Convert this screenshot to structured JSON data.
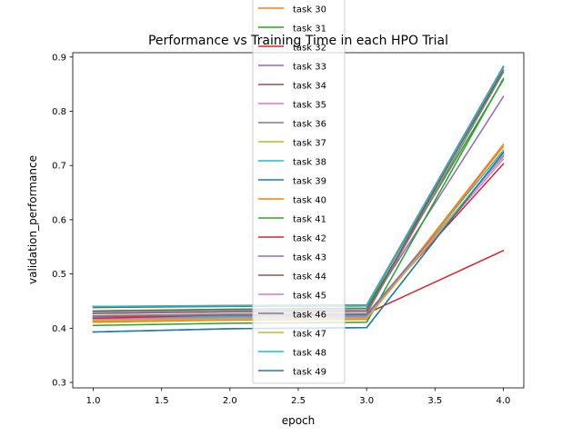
{
  "chart_data": {
    "type": "line",
    "title": "Performance vs Training Time in each HPO Trial",
    "xlabel": "epoch",
    "ylabel": "validation_performance",
    "x": [
      1.0,
      2.0,
      3.0,
      4.0
    ],
    "xlim": [
      0.85,
      4.15
    ],
    "ylim": [
      0.29,
      0.908
    ],
    "xticks": [
      1.0,
      1.5,
      2.0,
      2.5,
      3.0,
      3.5,
      4.0
    ],
    "xtick_labels": [
      "1.0",
      "1.5",
      "2.0",
      "2.5",
      "3.0",
      "3.5",
      "4.0"
    ],
    "yticks": [
      0.3,
      0.4,
      0.5,
      0.6,
      0.7,
      0.8,
      0.9
    ],
    "ytick_labels": [
      "0.3",
      "0.4",
      "0.5",
      "0.6",
      "0.7",
      "0.8",
      "0.9"
    ],
    "grid": false,
    "legend_position": "top-center",
    "series": [
      {
        "name": "task 30",
        "color": "#ff7f0e",
        "values": [
          0.411,
          0.415,
          0.416,
          0.739
        ]
      },
      {
        "name": "task 31",
        "color": "#2ca02c",
        "values": [
          0.432,
          0.435,
          0.437,
          0.858
        ]
      },
      {
        "name": "task 32",
        "color": "#d62728",
        "values": [
          0.421,
          0.424,
          0.425,
          0.703
        ]
      },
      {
        "name": "task 33",
        "color": "#9467bd",
        "values": [
          0.43,
          0.433,
          0.434,
          0.827
        ]
      },
      {
        "name": "task 34",
        "color": "#8c564b",
        "values": [
          0.438,
          0.44,
          0.441,
          0.875
        ]
      },
      {
        "name": "task 35",
        "color": "#e377c2",
        "values": [
          0.417,
          0.42,
          0.421,
          0.712
        ]
      },
      {
        "name": "task 36",
        "color": "#7f7f7f",
        "values": [
          0.44,
          0.442,
          0.443,
          0.883
        ]
      },
      {
        "name": "task 37",
        "color": "#bcbd22",
        "values": [
          0.415,
          0.418,
          0.419,
          0.72
        ]
      },
      {
        "name": "task 38",
        "color": "#17becf",
        "values": [
          0.419,
          0.422,
          0.423,
          0.728
        ]
      },
      {
        "name": "task 39",
        "color": "#1f77b4",
        "values": [
          0.393,
          0.399,
          0.401,
          0.724
        ]
      },
      {
        "name": "task 40",
        "color": "#ff7f0e",
        "values": [
          0.413,
          0.416,
          0.418,
          0.735
        ]
      },
      {
        "name": "task 41",
        "color": "#2ca02c",
        "values": [
          0.405,
          0.409,
          0.411,
          0.86
        ]
      },
      {
        "name": "task 42",
        "color": "#d62728",
        "values": [
          0.418,
          0.425,
          0.427,
          0.543
        ]
      },
      {
        "name": "task 43",
        "color": "#9467bd",
        "values": [
          0.422,
          0.425,
          0.426,
          0.717
        ]
      },
      {
        "name": "task 44",
        "color": "#8c564b",
        "values": [
          0.427,
          0.43,
          0.431,
          0.88
        ]
      },
      {
        "name": "task 45",
        "color": "#e377c2",
        "values": [
          0.416,
          0.419,
          0.42,
          0.719
        ]
      },
      {
        "name": "task 46",
        "color": "#7f7f7f",
        "values": [
          0.423,
          0.426,
          0.427,
          0.872
        ]
      },
      {
        "name": "task 47",
        "color": "#bcbd22",
        "values": [
          0.414,
          0.417,
          0.418,
          0.721
        ]
      },
      {
        "name": "task 48",
        "color": "#17becf",
        "values": [
          0.44,
          0.441,
          0.442,
          0.881
        ]
      },
      {
        "name": "task 49",
        "color": "#1f77b4",
        "values": [
          0.393,
          0.399,
          0.401,
          0.724
        ]
      }
    ]
  }
}
